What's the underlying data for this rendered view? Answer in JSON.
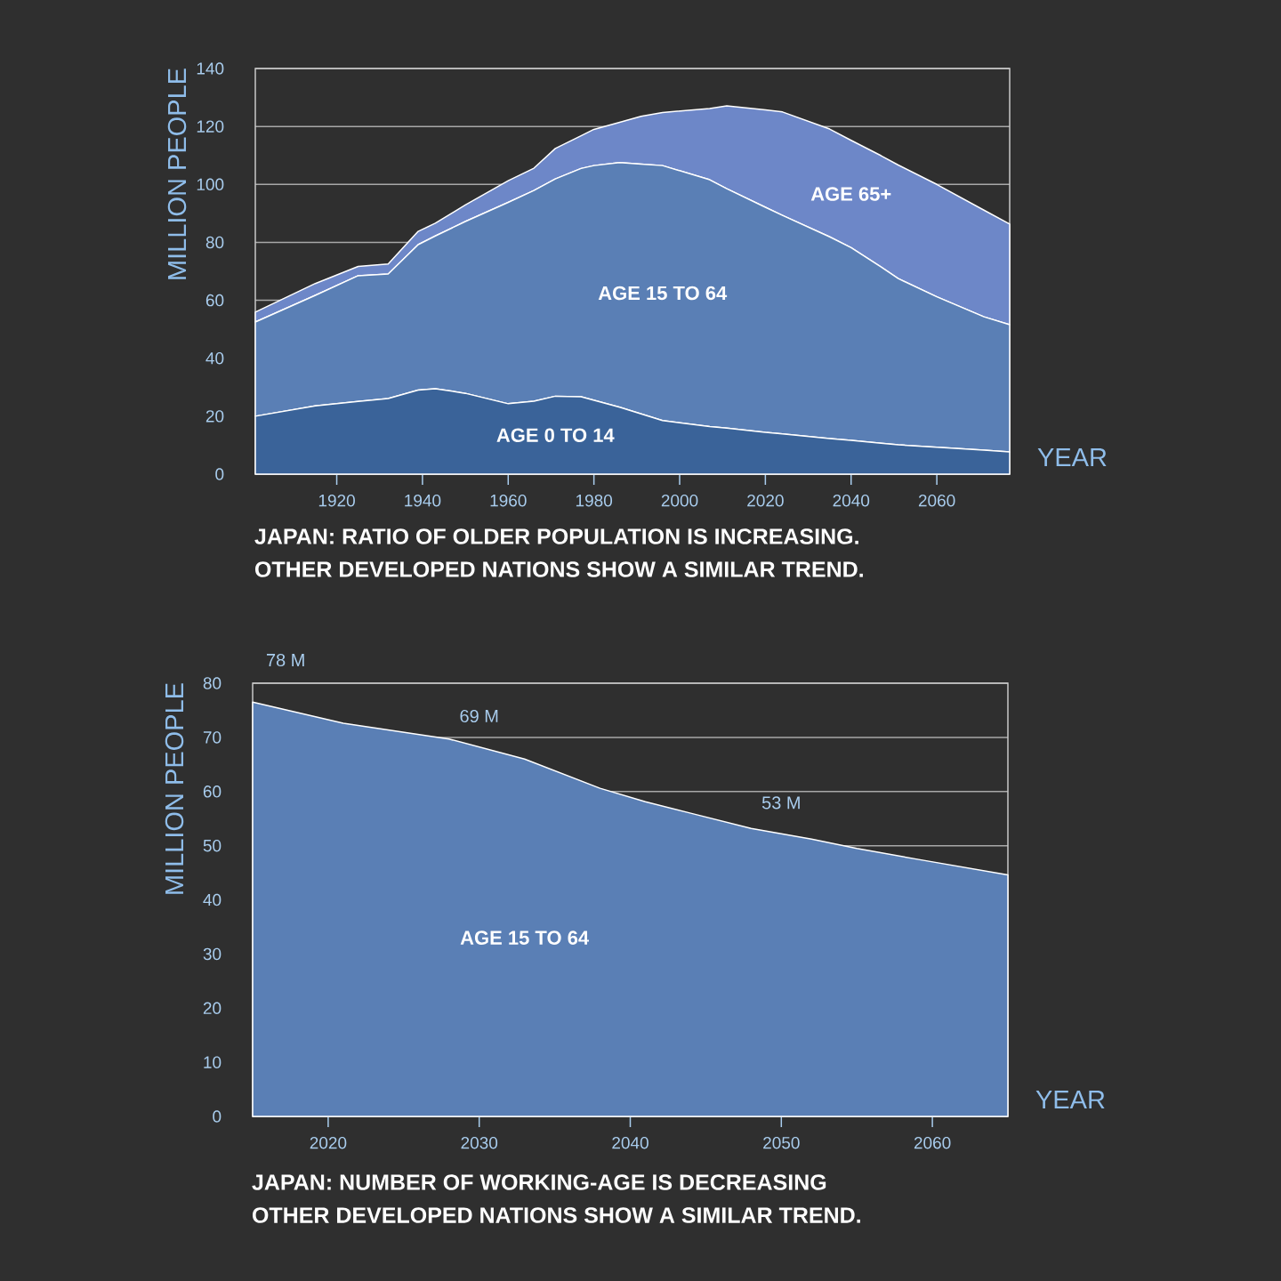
{
  "chart_data": [
    {
      "type": "area",
      "stacked": true,
      "title": "JAPAN: RATIO OF OLDER POPULATION IS INCREASING.",
      "subtitle": "OTHER DEVELOPED NATIONS SHOW A SIMILAR TREND.",
      "xlabel": "YEAR",
      "ylabel": "MILLION PEOPLE",
      "x": [
        1901,
        1915,
        1925,
        1932,
        1939,
        1943,
        1950,
        1960,
        1966,
        1971,
        1977,
        1980,
        1986,
        1991,
        1996,
        2007,
        2011,
        2020,
        2024,
        2035,
        2040,
        2047,
        2051,
        2060,
        2071,
        2077
      ],
      "series": [
        {
          "name": "AGE 0 TO 14",
          "color": "#3a6399",
          "values": [
            20,
            23.6,
            25.1,
            26.1,
            29,
            29.5,
            27.9,
            24.3,
            25.2,
            26.9,
            26.7,
            25.5,
            23.1,
            20.8,
            18.5,
            16.4,
            15.9,
            14.4,
            13.9,
            12.3,
            11.7,
            10.7,
            10.1,
            9.3,
            8.3,
            7.7
          ]
        },
        {
          "name": "AGE 15 TO 64",
          "color": "#5a7fb5",
          "values": [
            32.5,
            38.1,
            43.4,
            43,
            50.2,
            52.7,
            59.3,
            69.5,
            72.7,
            75,
            78.8,
            81,
            84.4,
            86.2,
            88,
            85.2,
            82.6,
            77.7,
            75.4,
            69.6,
            66.5,
            60.8,
            57.4,
            51.9,
            46,
            43.9
          ]
        },
        {
          "name": "AGE 65+",
          "color": "#6d87c8",
          "values": [
            3.4,
            4.1,
            3.2,
            3.4,
            4.6,
            4.4,
            5.7,
            7.5,
            7.7,
            10.5,
            11.3,
            12.5,
            13.9,
            16.5,
            18.3,
            24.6,
            28.6,
            33.6,
            35.7,
            37.2,
            37,
            38.4,
            39.2,
            38.8,
            36.8,
            34.7
          ]
        }
      ],
      "xlim": [
        1901,
        2077
      ],
      "xticks": [
        1920,
        1940,
        1960,
        1980,
        2000,
        2020,
        2040,
        2060
      ],
      "ylim": [
        0,
        140
      ],
      "yticks": [
        0,
        20,
        40,
        60,
        80,
        100,
        120,
        140
      ],
      "grid": "y"
    },
    {
      "type": "area",
      "title": "JAPAN: NUMBER OF WORKING-AGE IS DECREASING",
      "subtitle": "OTHER DEVELOPED NATIONS SHOW A SIMILAR TREND.",
      "xlabel": "YEAR",
      "ylabel": "MILLION PEOPLE",
      "x": [
        2015,
        2021,
        2028,
        2033,
        2038,
        2041,
        2044,
        2048,
        2052,
        2055,
        2059,
        2065
      ],
      "series": [
        {
          "name": "AGE 15 TO 64",
          "color": "#5a7fb5",
          "values": [
            76.5,
            72.6,
            69.7,
            66,
            60.6,
            58.1,
            56,
            53.2,
            51.2,
            49.5,
            47.5,
            44.6
          ]
        }
      ],
      "annotations": [
        "78 M",
        {
          "text": "69 M",
          "x": 2030,
          "y": 69
        },
        {
          "text": "53 M",
          "x": 2050,
          "y": 53
        }
      ],
      "xlim": [
        2015,
        2065
      ],
      "xticks": [
        2020,
        2030,
        2040,
        2050,
        2060
      ],
      "ylim": [
        0,
        80
      ],
      "yticks": [
        0,
        10,
        20,
        30,
        40,
        50,
        60,
        70,
        80
      ],
      "grid": "y"
    }
  ]
}
